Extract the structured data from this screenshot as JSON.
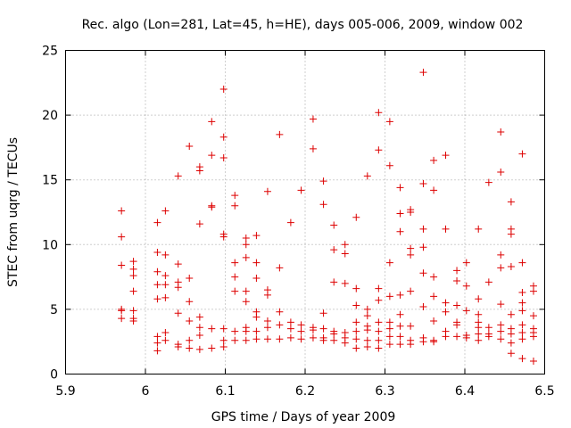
{
  "chart_data": {
    "type": "scatter",
    "title": "Rec. algo (Lon=281, Lat=45, h=HE), days 005-006, 2009, window 002",
    "xlabel": "GPS time / Days of year 2009",
    "ylabel": "STEC from uqrg / TECUs",
    "xlim": [
      5.9,
      6.5
    ],
    "ylim": [
      0,
      25
    ],
    "xticks": [
      5.9,
      6.0,
      6.1,
      6.2,
      6.3,
      6.4,
      6.5
    ],
    "xtick_labels": [
      "5.9",
      "6",
      "6.1",
      "6.2",
      "6.3",
      "6.4",
      "6.5"
    ],
    "yticks": [
      0,
      5,
      10,
      15,
      20,
      25
    ],
    "ytick_labels": [
      "0",
      "5",
      "10",
      "15",
      "20",
      "25"
    ],
    "grid": true,
    "marker": "+",
    "color": "#dd0000",
    "series": [
      {
        "name": "STEC",
        "points": [
          [
            5.97,
            12.6
          ],
          [
            5.97,
            10.6
          ],
          [
            5.97,
            8.4
          ],
          [
            5.97,
            5.0
          ],
          [
            5.97,
            4.9
          ],
          [
            5.97,
            4.3
          ],
          [
            5.985,
            8.7
          ],
          [
            5.985,
            8.1
          ],
          [
            5.985,
            7.6
          ],
          [
            5.985,
            6.4
          ],
          [
            5.985,
            4.9
          ],
          [
            5.985,
            4.3
          ],
          [
            5.985,
            4.1
          ],
          [
            6.015,
            11.7
          ],
          [
            6.015,
            9.4
          ],
          [
            6.015,
            7.9
          ],
          [
            6.015,
            6.9
          ],
          [
            6.015,
            5.8
          ],
          [
            6.015,
            2.9
          ],
          [
            6.015,
            2.4
          ],
          [
            6.015,
            1.8
          ],
          [
            6.025,
            12.6
          ],
          [
            6.025,
            9.2
          ],
          [
            6.025,
            7.6
          ],
          [
            6.025,
            6.9
          ],
          [
            6.025,
            5.9
          ],
          [
            6.025,
            3.2
          ],
          [
            6.025,
            2.6
          ],
          [
            6.041,
            15.3
          ],
          [
            6.041,
            8.5
          ],
          [
            6.041,
            7.1
          ],
          [
            6.041,
            6.7
          ],
          [
            6.041,
            4.7
          ],
          [
            6.041,
            2.3
          ],
          [
            6.041,
            2.1
          ],
          [
            6.055,
            17.6
          ],
          [
            6.055,
            7.4
          ],
          [
            6.055,
            5.6
          ],
          [
            6.055,
            4.1
          ],
          [
            6.055,
            2.6
          ],
          [
            6.055,
            2.0
          ],
          [
            6.068,
            16.0
          ],
          [
            6.068,
            15.7
          ],
          [
            6.068,
            11.6
          ],
          [
            6.068,
            4.4
          ],
          [
            6.068,
            3.6
          ],
          [
            6.068,
            3.0
          ],
          [
            6.068,
            1.9
          ],
          [
            6.083,
            19.5
          ],
          [
            6.083,
            16.9
          ],
          [
            6.083,
            13.0
          ],
          [
            6.083,
            12.9
          ],
          [
            6.083,
            3.5
          ],
          [
            6.083,
            2.0
          ],
          [
            6.098,
            22.0
          ],
          [
            6.098,
            18.3
          ],
          [
            6.098,
            16.7
          ],
          [
            6.098,
            10.8
          ],
          [
            6.098,
            10.6
          ],
          [
            6.098,
            3.5
          ],
          [
            6.098,
            2.6
          ],
          [
            6.098,
            2.1
          ],
          [
            6.112,
            13.8
          ],
          [
            6.112,
            13.0
          ],
          [
            6.112,
            8.6
          ],
          [
            6.112,
            7.5
          ],
          [
            6.112,
            6.4
          ],
          [
            6.112,
            3.3
          ],
          [
            6.112,
            2.6
          ],
          [
            6.126,
            10.5
          ],
          [
            6.126,
            10.0
          ],
          [
            6.126,
            9.0
          ],
          [
            6.126,
            6.4
          ],
          [
            6.126,
            5.6
          ],
          [
            6.126,
            3.6
          ],
          [
            6.126,
            3.3
          ],
          [
            6.126,
            2.6
          ],
          [
            6.139,
            10.7
          ],
          [
            6.139,
            8.6
          ],
          [
            6.139,
            7.4
          ],
          [
            6.139,
            4.8
          ],
          [
            6.139,
            4.4
          ],
          [
            6.139,
            3.3
          ],
          [
            6.139,
            2.7
          ],
          [
            6.153,
            14.1
          ],
          [
            6.153,
            6.5
          ],
          [
            6.153,
            6.1
          ],
          [
            6.153,
            4.1
          ],
          [
            6.153,
            3.6
          ],
          [
            6.153,
            2.7
          ],
          [
            6.168,
            18.5
          ],
          [
            6.168,
            8.2
          ],
          [
            6.168,
            4.8
          ],
          [
            6.168,
            3.8
          ],
          [
            6.168,
            2.7
          ],
          [
            6.182,
            11.7
          ],
          [
            6.182,
            4.0
          ],
          [
            6.182,
            3.5
          ],
          [
            6.182,
            2.8
          ],
          [
            6.195,
            14.2
          ],
          [
            6.195,
            3.8
          ],
          [
            6.195,
            3.3
          ],
          [
            6.195,
            2.7
          ],
          [
            6.21,
            19.7
          ],
          [
            6.21,
            17.4
          ],
          [
            6.21,
            3.6
          ],
          [
            6.21,
            3.4
          ],
          [
            6.21,
            2.8
          ],
          [
            6.223,
            14.9
          ],
          [
            6.223,
            13.1
          ],
          [
            6.223,
            4.7
          ],
          [
            6.223,
            3.5
          ],
          [
            6.223,
            2.8
          ],
          [
            6.223,
            2.6
          ],
          [
            6.236,
            11.5
          ],
          [
            6.236,
            9.6
          ],
          [
            6.236,
            7.1
          ],
          [
            6.236,
            3.3
          ],
          [
            6.236,
            3.1
          ],
          [
            6.236,
            2.6
          ],
          [
            6.25,
            10.0
          ],
          [
            6.25,
            9.3
          ],
          [
            6.25,
            7.0
          ],
          [
            6.25,
            3.2
          ],
          [
            6.25,
            2.8
          ],
          [
            6.25,
            2.4
          ],
          [
            6.264,
            12.1
          ],
          [
            6.264,
            6.6
          ],
          [
            6.264,
            5.3
          ],
          [
            6.264,
            4.0
          ],
          [
            6.264,
            3.3
          ],
          [
            6.264,
            2.7
          ],
          [
            6.264,
            2.0
          ],
          [
            6.278,
            15.3
          ],
          [
            6.278,
            5.0
          ],
          [
            6.278,
            4.5
          ],
          [
            6.278,
            3.7
          ],
          [
            6.278,
            3.4
          ],
          [
            6.278,
            2.6
          ],
          [
            6.278,
            2.1
          ],
          [
            6.292,
            20.2
          ],
          [
            6.292,
            17.3
          ],
          [
            6.292,
            6.6
          ],
          [
            6.292,
            5.7
          ],
          [
            6.292,
            4.0
          ],
          [
            6.292,
            3.3
          ],
          [
            6.292,
            2.6
          ],
          [
            6.292,
            2.0
          ],
          [
            6.306,
            19.5
          ],
          [
            6.306,
            16.1
          ],
          [
            6.306,
            8.6
          ],
          [
            6.306,
            6.0
          ],
          [
            6.306,
            4.0
          ],
          [
            6.306,
            3.5
          ],
          [
            6.306,
            2.9
          ],
          [
            6.306,
            2.3
          ],
          [
            6.319,
            14.4
          ],
          [
            6.319,
            12.4
          ],
          [
            6.319,
            11.0
          ],
          [
            6.319,
            6.1
          ],
          [
            6.319,
            4.6
          ],
          [
            6.319,
            3.7
          ],
          [
            6.319,
            2.9
          ],
          [
            6.319,
            2.3
          ],
          [
            6.332,
            12.7
          ],
          [
            6.332,
            12.5
          ],
          [
            6.332,
            9.7
          ],
          [
            6.332,
            9.2
          ],
          [
            6.332,
            6.4
          ],
          [
            6.332,
            3.7
          ],
          [
            6.332,
            2.6
          ],
          [
            6.332,
            2.3
          ],
          [
            6.348,
            23.3
          ],
          [
            6.348,
            14.7
          ],
          [
            6.348,
            11.2
          ],
          [
            6.348,
            9.8
          ],
          [
            6.348,
            7.8
          ],
          [
            6.348,
            5.2
          ],
          [
            6.348,
            2.8
          ],
          [
            6.348,
            2.5
          ],
          [
            6.361,
            16.5
          ],
          [
            6.361,
            14.2
          ],
          [
            6.361,
            7.5
          ],
          [
            6.361,
            6.0
          ],
          [
            6.361,
            4.1
          ],
          [
            6.361,
            2.6
          ],
          [
            6.361,
            2.5
          ],
          [
            6.376,
            16.9
          ],
          [
            6.376,
            11.2
          ],
          [
            6.376,
            5.5
          ],
          [
            6.376,
            4.8
          ],
          [
            6.376,
            3.3
          ],
          [
            6.376,
            2.9
          ],
          [
            6.39,
            8.0
          ],
          [
            6.39,
            7.2
          ],
          [
            6.39,
            5.3
          ],
          [
            6.39,
            4.0
          ],
          [
            6.39,
            3.8
          ],
          [
            6.39,
            2.9
          ],
          [
            6.402,
            8.6
          ],
          [
            6.402,
            6.8
          ],
          [
            6.402,
            4.9
          ],
          [
            6.402,
            3.0
          ],
          [
            6.402,
            2.8
          ],
          [
            6.417,
            11.2
          ],
          [
            6.417,
            5.8
          ],
          [
            6.417,
            4.6
          ],
          [
            6.417,
            4.0
          ],
          [
            6.417,
            3.6
          ],
          [
            6.417,
            3.1
          ],
          [
            6.417,
            2.6
          ],
          [
            6.43,
            14.8
          ],
          [
            6.43,
            7.1
          ],
          [
            6.43,
            3.6
          ],
          [
            6.43,
            3.1
          ],
          [
            6.43,
            2.9
          ],
          [
            6.445,
            18.7
          ],
          [
            6.445,
            15.6
          ],
          [
            6.445,
            9.2
          ],
          [
            6.445,
            8.2
          ],
          [
            6.445,
            5.4
          ],
          [
            6.445,
            3.8
          ],
          [
            6.445,
            3.3
          ],
          [
            6.445,
            2.7
          ],
          [
            6.458,
            13.3
          ],
          [
            6.458,
            11.2
          ],
          [
            6.458,
            10.8
          ],
          [
            6.458,
            8.3
          ],
          [
            6.458,
            4.6
          ],
          [
            6.458,
            3.5
          ],
          [
            6.458,
            3.1
          ],
          [
            6.458,
            2.4
          ],
          [
            6.458,
            1.6
          ],
          [
            6.472,
            17.0
          ],
          [
            6.472,
            8.6
          ],
          [
            6.472,
            6.3
          ],
          [
            6.472,
            5.5
          ],
          [
            6.472,
            4.9
          ],
          [
            6.472,
            3.8
          ],
          [
            6.472,
            3.2
          ],
          [
            6.472,
            2.7
          ],
          [
            6.472,
            1.2
          ],
          [
            6.486,
            6.8
          ],
          [
            6.486,
            6.4
          ],
          [
            6.486,
            4.5
          ],
          [
            6.486,
            3.5
          ],
          [
            6.486,
            3.2
          ],
          [
            6.486,
            2.9
          ],
          [
            6.486,
            1.0
          ]
        ]
      }
    ]
  }
}
